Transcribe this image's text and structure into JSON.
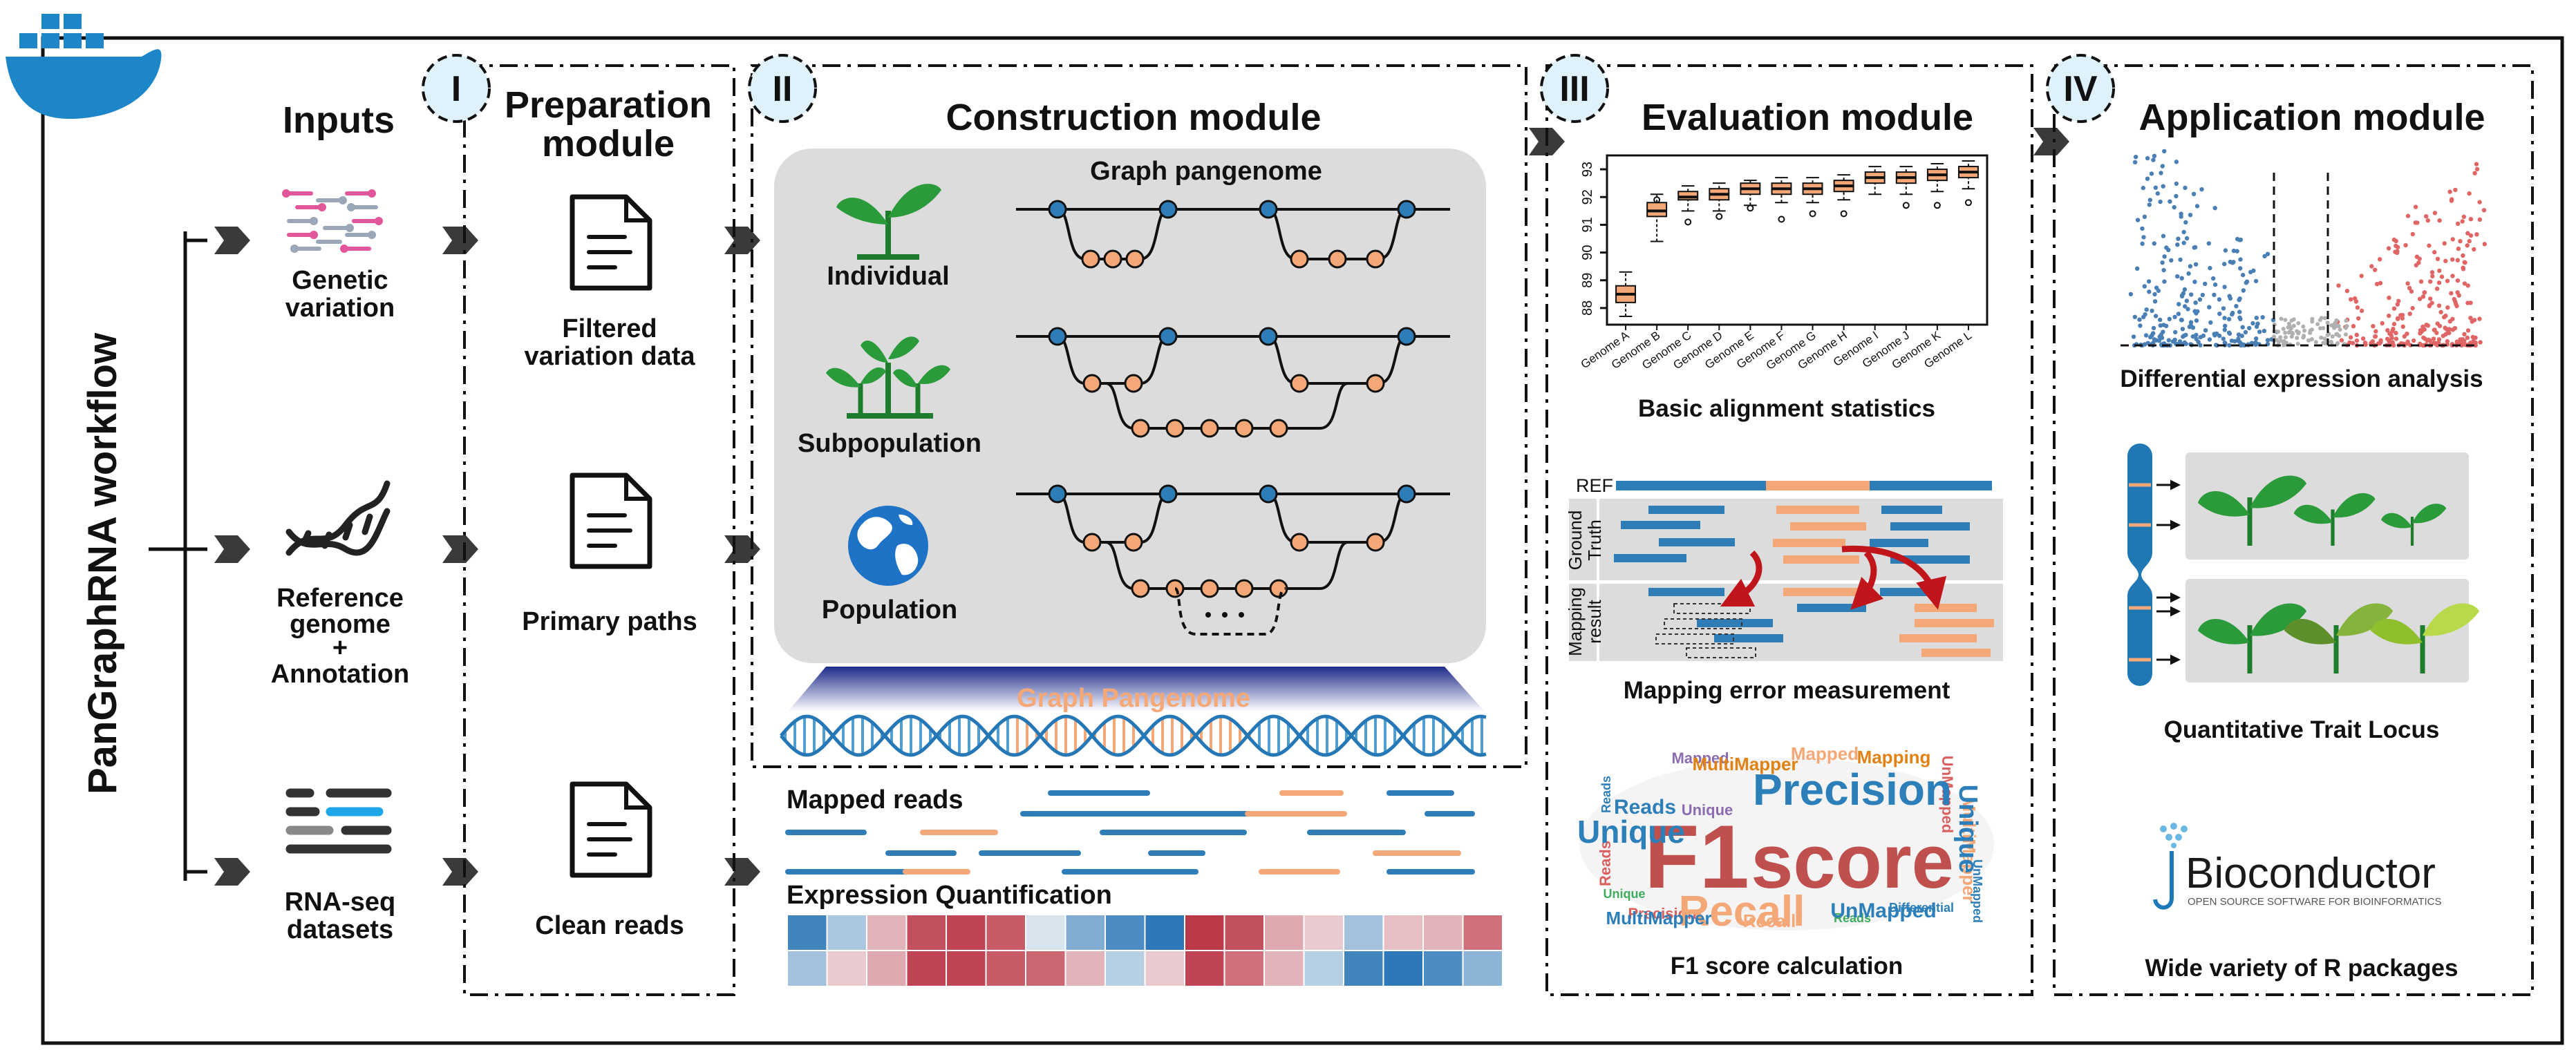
{
  "workflow_title": "PanGraphRNA workflow",
  "roman": [
    "I",
    "II",
    "III",
    "IV"
  ],
  "inputs": {
    "heading": "Inputs",
    "genetic_variation": [
      "Genetic",
      "variation"
    ],
    "reference_genome": [
      "Reference",
      "genome",
      "+",
      "Annotation"
    ],
    "rnaseq": [
      "RNA-seq",
      "datasets"
    ]
  },
  "preparation": {
    "heading": [
      "Preparation",
      "module"
    ],
    "filtered": [
      "Filtered",
      "variation data"
    ],
    "primary_paths": "Primary paths",
    "clean_reads": "Clean reads"
  },
  "construction": {
    "heading": "Construction module",
    "graph_pangenome": "Graph pangenome",
    "individual": "Individual",
    "subpopulation": "Subpopulation",
    "population": "Population",
    "graph_pangenome_banner": "Graph Pangenome",
    "mapped_reads": "Mapped reads",
    "expression_quantification": "Expression Quantification"
  },
  "evaluation": {
    "heading": "Evaluation module",
    "basic_alignment": "Basic alignment statistics",
    "mapping_error": "Mapping error measurement",
    "f1_score": "F1 score calculation",
    "ref_label": "REF",
    "ground_truth": [
      "Ground",
      "Truth"
    ],
    "mapping_result": [
      "Mapping",
      "result"
    ],
    "wordcloud": {
      "big": [
        "F1",
        "score",
        "Precision",
        "Recall",
        "Unique",
        "Reads",
        "UnMapped",
        "MultiMapper"
      ],
      "small": [
        "Reads",
        "UnMapped",
        "MultiMapper",
        "Unique",
        "Mapped",
        "Mapping",
        "Differential",
        "Precision",
        "Recall",
        "Reads",
        "Unique",
        "MultiMapper",
        "UnMapped",
        "Reads",
        "Mapped"
      ]
    }
  },
  "application": {
    "heading": "Application module",
    "differential_expression": "Differential expression analysis",
    "qtl": "Quantitative Trait Locus",
    "bioconductor": "Bioconductor",
    "bioconductor_tagline": "OPEN SOURCE SOFTWARE FOR BIOINFORMATICS",
    "r_packages": "Wide variety of R packages"
  },
  "chart_data": {
    "type": "box",
    "categories": [
      "Genome A",
      "Genome B",
      "Genome C",
      "Genome D",
      "Genome E",
      "Genome F",
      "Genome G",
      "Genome H",
      "Genome I",
      "Genome J",
      "Genome K",
      "Genome L"
    ],
    "yticks": [
      88,
      89,
      90,
      91,
      92,
      93
    ],
    "ylim": [
      87.4,
      93.5
    ],
    "box_color": "#f5a877",
    "boxes": [
      {
        "q1": 88.2,
        "median": 88.5,
        "q3": 88.8,
        "low": 87.7,
        "high": 89.3
      },
      {
        "q1": 91.3,
        "median": 91.5,
        "q3": 91.8,
        "low": 90.4,
        "high": 92.1
      },
      {
        "q1": 91.9,
        "median": 92.0,
        "q3": 92.2,
        "low": 91.5,
        "high": 92.4
      },
      {
        "q1": 91.9,
        "median": 92.1,
        "q3": 92.3,
        "low": 91.5,
        "high": 92.5
      },
      {
        "q1": 92.1,
        "median": 92.3,
        "q3": 92.5,
        "low": 91.7,
        "high": 92.6
      },
      {
        "q1": 92.1,
        "median": 92.3,
        "q3": 92.5,
        "low": 91.8,
        "high": 92.7
      },
      {
        "q1": 92.1,
        "median": 92.3,
        "q3": 92.5,
        "low": 91.8,
        "high": 92.7
      },
      {
        "q1": 92.2,
        "median": 92.4,
        "q3": 92.6,
        "low": 91.9,
        "high": 92.8
      },
      {
        "q1": 92.5,
        "median": 92.7,
        "q3": 92.9,
        "low": 92.1,
        "high": 93.1
      },
      {
        "q1": 92.5,
        "median": 92.7,
        "q3": 92.9,
        "low": 92.1,
        "high": 93.1
      },
      {
        "q1": 92.6,
        "median": 92.8,
        "q3": 93.0,
        "low": 92.2,
        "high": 93.2
      },
      {
        "q1": 92.7,
        "median": 92.9,
        "q3": 93.1,
        "low": 92.3,
        "high": 93.3
      }
    ],
    "outliers": [
      [
        1,
        91.9
      ],
      [
        2,
        91.1
      ],
      [
        3,
        91.3
      ],
      [
        4,
        91.6
      ],
      [
        5,
        91.2
      ],
      [
        6,
        91.4
      ],
      [
        7,
        91.4
      ],
      [
        9,
        91.7
      ],
      [
        10,
        91.7
      ],
      [
        11,
        91.8
      ]
    ]
  },
  "heatmap": {
    "rows": [
      [
        0.85,
        0.35,
        -0.3,
        -0.75,
        -0.8,
        -0.7,
        0.15,
        0.55,
        0.8,
        0.95,
        -0.85,
        -0.75,
        -0.35,
        -0.2,
        0.4,
        -0.25,
        -0.3,
        -0.6
      ],
      [
        0.4,
        -0.2,
        -0.35,
        -0.8,
        -0.8,
        -0.7,
        -0.65,
        -0.3,
        0.3,
        -0.2,
        -0.8,
        -0.6,
        -0.3,
        0.3,
        0.85,
        0.95,
        0.8,
        0.5
      ]
    ]
  },
  "colors": {
    "blue": "#2e7db6",
    "orange": "#f5a877",
    "green": "#2b9a3b",
    "panel_gray": "#dcdcdc"
  }
}
